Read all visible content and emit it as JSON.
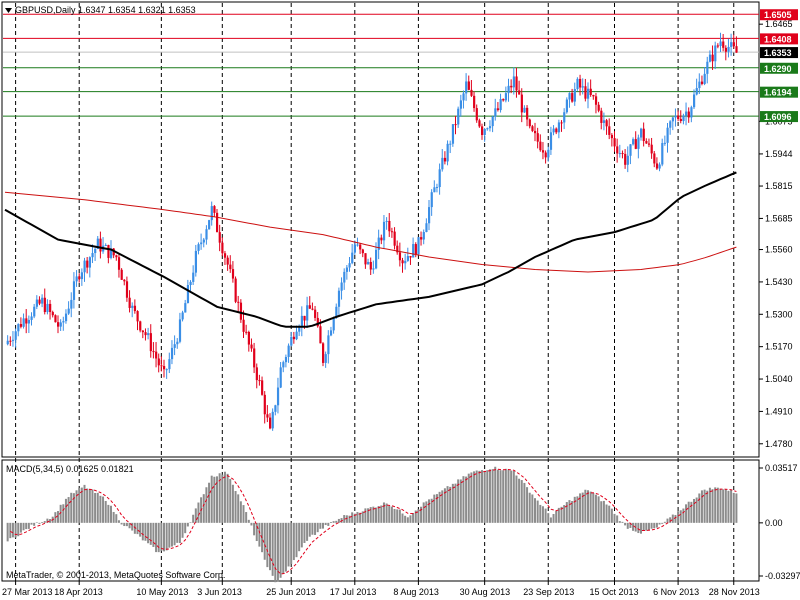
{
  "window": {
    "title": "GBPUSD,Daily  1.6347 1.6354 1.6321 1.6353",
    "indicator_title": "MACD(5,34,5)  0.01625  0.01821",
    "copyright": "MetaTrader, © 2001-2013, MetaQuotes Software Corp."
  },
  "icons": {
    "menu": "triangle-down-icon"
  },
  "colors": {
    "bull": "#3a8ee6",
    "bear": "#e0001b",
    "ma_fast": "#000000",
    "ma_slow": "#cc1010",
    "resistance": "#e0001b",
    "support": "#1a7a1a",
    "current": "#000000",
    "macd_hist": "#8c8c8c",
    "macd_signal": "#e0001b"
  },
  "chart_data": [
    {
      "type": "candlestick",
      "symbol": "GBPUSD",
      "timeframe": "Daily",
      "ohlc_last": {
        "open": 1.6347,
        "high": 1.6354,
        "low": 1.6321,
        "close": 1.6353
      },
      "ylim": [
        1.4747,
        1.653
      ],
      "y_ticks": [
        "1.6465",
        "1.6353",
        "1.6075",
        "1.5944",
        "1.5815",
        "1.5685",
        "1.5560",
        "1.5430",
        "1.5300",
        "1.5170",
        "1.5040",
        "1.4910",
        "1.4780"
      ],
      "x_ticks": [
        "27 Mar 2013",
        "18 Apr 2013",
        "10 May 2013",
        "3 Jun 2013",
        "25 Jun 2013",
        "17 Jul 2013",
        "8 Aug 2013",
        "30 Aug 2013",
        "23 Sep 2013",
        "15 Oct 2013",
        "6 Nov 2013",
        "28 Nov 2013"
      ],
      "price_levels": [
        {
          "value": 1.6505,
          "label": "1.6505",
          "kind": "resistance"
        },
        {
          "value": 1.6408,
          "label": "1.6408",
          "kind": "resistance"
        },
        {
          "value": 1.6353,
          "label": "1.6353",
          "kind": "current"
        },
        {
          "value": 1.629,
          "label": "1.6290",
          "kind": "support"
        },
        {
          "value": 1.6194,
          "label": "1.6194",
          "kind": "support"
        },
        {
          "value": 1.6096,
          "label": "1.6096",
          "kind": "support"
        }
      ],
      "close_keypoints": [
        [
          0,
          1.518
        ],
        [
          7,
          1.528
        ],
        [
          14,
          1.535
        ],
        [
          21,
          1.524
        ],
        [
          28,
          1.547
        ],
        [
          35,
          1.558
        ],
        [
          42,
          1.553
        ],
        [
          48,
          1.532
        ],
        [
          54,
          1.52
        ],
        [
          60,
          1.505
        ],
        [
          66,
          1.525
        ],
        [
          72,
          1.553
        ],
        [
          78,
          1.572
        ],
        [
          84,
          1.55
        ],
        [
          90,
          1.525
        ],
        [
          96,
          1.502
        ],
        [
          100,
          1.482
        ],
        [
          104,
          1.508
        ],
        [
          110,
          1.526
        ],
        [
          116,
          1.533
        ],
        [
          120,
          1.512
        ],
        [
          126,
          1.54
        ],
        [
          132,
          1.558
        ],
        [
          138,
          1.548
        ],
        [
          144,
          1.568
        ],
        [
          150,
          1.552
        ],
        [
          156,
          1.558
        ],
        [
          162,
          1.58
        ],
        [
          168,
          1.6
        ],
        [
          174,
          1.622
        ],
        [
          180,
          1.604
        ],
        [
          186,
          1.612
        ],
        [
          192,
          1.624
        ],
        [
          198,
          1.603
        ],
        [
          204,
          1.596
        ],
        [
          210,
          1.61
        ],
        [
          216,
          1.622
        ],
        [
          222,
          1.616
        ],
        [
          228,
          1.602
        ],
        [
          234,
          1.592
        ],
        [
          240,
          1.603
        ],
        [
          246,
          1.59
        ],
        [
          252,
          1.608
        ],
        [
          258,
          1.612
        ],
        [
          264,
          1.628
        ],
        [
          270,
          1.64
        ],
        [
          276,
          1.635
        ]
      ],
      "ma_fast_keypoints": [
        [
          0,
          1.572
        ],
        [
          20,
          1.56
        ],
        [
          40,
          1.556
        ],
        [
          60,
          1.545
        ],
        [
          70,
          1.539
        ],
        [
          80,
          1.533
        ],
        [
          95,
          1.529
        ],
        [
          105,
          1.525
        ],
        [
          115,
          1.525
        ],
        [
          125,
          1.529
        ],
        [
          140,
          1.534
        ],
        [
          160,
          1.537
        ],
        [
          180,
          1.542
        ],
        [
          190,
          1.547
        ],
        [
          200,
          1.553
        ],
        [
          215,
          1.56
        ],
        [
          230,
          1.563
        ],
        [
          245,
          1.568
        ],
        [
          255,
          1.577
        ],
        [
          265,
          1.582
        ],
        [
          276,
          1.587
        ]
      ],
      "ma_slow_keypoints": [
        [
          0,
          1.579
        ],
        [
          30,
          1.576
        ],
        [
          60,
          1.572
        ],
        [
          80,
          1.569
        ],
        [
          100,
          1.565
        ],
        [
          120,
          1.562
        ],
        [
          140,
          1.557
        ],
        [
          160,
          1.553
        ],
        [
          180,
          1.55
        ],
        [
          200,
          1.548
        ],
        [
          220,
          1.547
        ],
        [
          240,
          1.548
        ],
        [
          255,
          1.55
        ],
        [
          265,
          1.553
        ],
        [
          276,
          1.557
        ]
      ]
    },
    {
      "type": "bar",
      "name": "MACD(5,34,5)",
      "values_last": {
        "macd": 0.01625,
        "signal": 0.01821
      },
      "ylim": [
        -0.03297,
        0.03517
      ],
      "y_ticks": [
        "0.03517",
        "0.00",
        "-0.03297"
      ],
      "hist_keypoints": [
        [
          0,
          -0.012
        ],
        [
          10,
          -0.002
        ],
        [
          18,
          0.004
        ],
        [
          24,
          0.016
        ],
        [
          30,
          0.022
        ],
        [
          38,
          0.014
        ],
        [
          44,
          0.0
        ],
        [
          52,
          -0.01
        ],
        [
          58,
          -0.018
        ],
        [
          66,
          -0.012
        ],
        [
          72,
          0.008
        ],
        [
          78,
          0.028
        ],
        [
          84,
          0.03
        ],
        [
          90,
          0.01
        ],
        [
          96,
          -0.015
        ],
        [
          102,
          -0.036
        ],
        [
          108,
          -0.025
        ],
        [
          114,
          -0.01
        ],
        [
          120,
          -0.003
        ],
        [
          128,
          0.004
        ],
        [
          136,
          0.008
        ],
        [
          144,
          0.012
        ],
        [
          152,
          0.004
        ],
        [
          160,
          0.014
        ],
        [
          168,
          0.022
        ],
        [
          176,
          0.03
        ],
        [
          184,
          0.033
        ],
        [
          192,
          0.031
        ],
        [
          200,
          0.015
        ],
        [
          206,
          0.004
        ],
        [
          212,
          0.012
        ],
        [
          220,
          0.02
        ],
        [
          228,
          0.01
        ],
        [
          234,
          -0.002
        ],
        [
          240,
          -0.006
        ],
        [
          246,
          -0.003
        ],
        [
          252,
          0.004
        ],
        [
          258,
          0.012
        ],
        [
          264,
          0.02
        ],
        [
          270,
          0.021
        ],
        [
          276,
          0.018
        ]
      ]
    }
  ]
}
